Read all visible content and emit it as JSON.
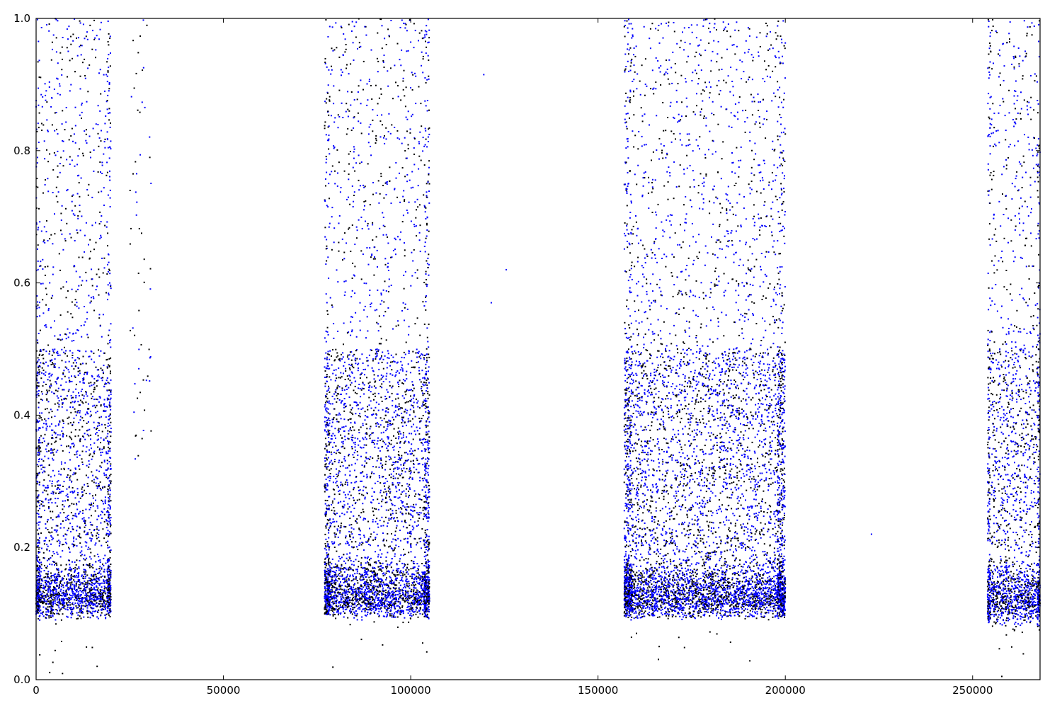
{
  "chart_data": {
    "type": "scatter",
    "title": "",
    "xlabel": "",
    "ylabel": "",
    "xlim": [
      0,
      268000
    ],
    "ylim": [
      0,
      1.0
    ],
    "x_ticks": [
      0,
      50000,
      100000,
      150000,
      200000,
      250000
    ],
    "x_tick_labels": [
      "0",
      "50000",
      "100000",
      "150000",
      "200000",
      "250000"
    ],
    "y_ticks": [
      0.0,
      0.2,
      0.4,
      0.6,
      0.8,
      1.0
    ],
    "y_tick_labels": [
      "0.0",
      "0.2",
      "0.4",
      "0.6",
      "0.8",
      "1.0"
    ],
    "grid": false,
    "legend": "none",
    "series": [
      {
        "color": "#0000ff"
      },
      {
        "color": "#000000"
      }
    ],
    "clusters": [
      {
        "x_range": [
          0,
          20000
        ],
        "y_floor": 0.09,
        "density_peak_y": 0.15
      },
      {
        "x_range": [
          77000,
          105000
        ],
        "y_floor": 0.09,
        "density_peak_y": 0.15
      },
      {
        "x_range": [
          157000,
          200000
        ],
        "y_floor": 0.09,
        "density_peak_y": 0.15
      },
      {
        "x_range": [
          254000,
          268000
        ],
        "y_floor": 0.08,
        "density_peak_y": 0.15
      }
    ],
    "sparse_points": [
      {
        "x_range": [
          25000,
          31000
        ],
        "y_range": [
          0.33,
          1.0
        ]
      },
      {
        "x": 119500,
        "y": 0.915
      },
      {
        "x": 125500,
        "y": 0.62
      },
      {
        "x": 121500,
        "y": 0.57
      },
      {
        "x": 223000,
        "y": 0.22
      }
    ]
  }
}
